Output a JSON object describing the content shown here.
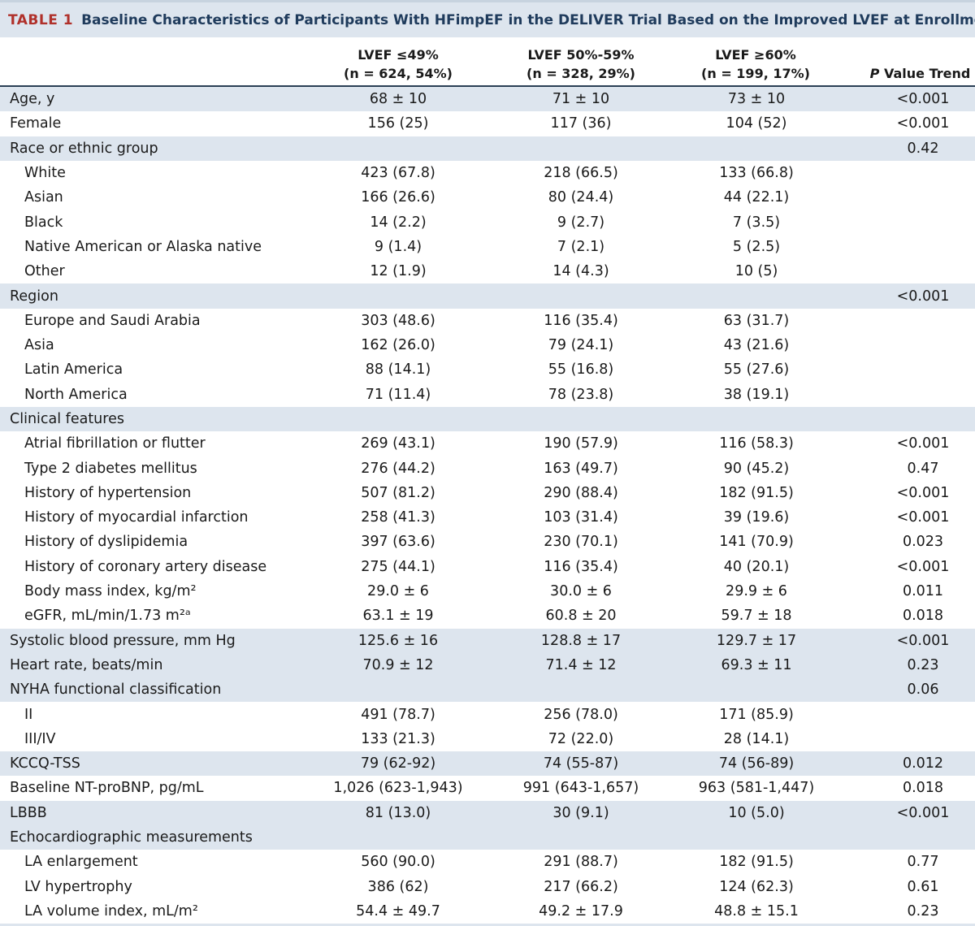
{
  "title": {
    "label": "TABLE 1",
    "text": "Baseline Characteristics of Participants With HFimpEF in the DELIVER Trial Based on the Improved LVEF at Enrollment"
  },
  "columns": [
    {
      "line1": "LVEF ≤49%",
      "line2": "(n = 624, 54%)"
    },
    {
      "line1": "LVEF 50%-59%",
      "line2": "(n = 328, 29%)"
    },
    {
      "line1": "LVEF ≥60%",
      "line2": "(n = 199, 17%)"
    },
    {
      "p": "P",
      "rest": " Value Trend"
    }
  ],
  "rows": [
    {
      "label": "Age, y",
      "v1": "68 ± 10",
      "v2": "71 ± 10",
      "v3": "73 ± 10",
      "p": "<0.001"
    },
    {
      "label": "Female",
      "v1": "156 (25)",
      "v2": "117 (36)",
      "v3": "104 (52)",
      "p": "<0.001"
    },
    {
      "label": "Race or ethnic group",
      "v1": "",
      "v2": "",
      "v3": "",
      "p": "0.42"
    },
    {
      "label": "White",
      "v1": "423 (67.8)",
      "v2": "218 (66.5)",
      "v3": "133 (66.8)",
      "p": ""
    },
    {
      "label": "Asian",
      "v1": "166 (26.6)",
      "v2": "80 (24.4)",
      "v3": "44 (22.1)",
      "p": ""
    },
    {
      "label": "Black",
      "v1": "14 (2.2)",
      "v2": "9 (2.7)",
      "v3": "7 (3.5)",
      "p": ""
    },
    {
      "label": "Native American or Alaska native",
      "v1": "9 (1.4)",
      "v2": "7 (2.1)",
      "v3": "5 (2.5)",
      "p": ""
    },
    {
      "label": "Other",
      "v1": "12 (1.9)",
      "v2": "14 (4.3)",
      "v3": "10 (5)",
      "p": ""
    },
    {
      "label": "Region",
      "v1": "",
      "v2": "",
      "v3": "",
      "p": "<0.001"
    },
    {
      "label": "Europe and Saudi Arabia",
      "v1": "303 (48.6)",
      "v2": "116 (35.4)",
      "v3": "63 (31.7)",
      "p": ""
    },
    {
      "label": "Asia",
      "v1": "162 (26.0)",
      "v2": "79 (24.1)",
      "v3": "43 (21.6)",
      "p": ""
    },
    {
      "label": "Latin America",
      "v1": "88 (14.1)",
      "v2": "55 (16.8)",
      "v3": "55 (27.6)",
      "p": ""
    },
    {
      "label": "North America",
      "v1": "71 (11.4)",
      "v2": "78 (23.8)",
      "v3": "38 (19.1)",
      "p": ""
    },
    {
      "label": "Clinical features",
      "v1": "",
      "v2": "",
      "v3": "",
      "p": ""
    },
    {
      "label": "Atrial fibrillation or flutter",
      "v1": "269 (43.1)",
      "v2": "190 (57.9)",
      "v3": "116 (58.3)",
      "p": "<0.001"
    },
    {
      "label": "Type 2 diabetes mellitus",
      "v1": "276 (44.2)",
      "v2": "163 (49.7)",
      "v3": "90 (45.2)",
      "p": "0.47"
    },
    {
      "label": "History of hypertension",
      "v1": "507 (81.2)",
      "v2": "290 (88.4)",
      "v3": "182 (91.5)",
      "p": "<0.001"
    },
    {
      "label": "History of myocardial infarction",
      "v1": "258 (41.3)",
      "v2": "103 (31.4)",
      "v3": "39 (19.6)",
      "p": "<0.001"
    },
    {
      "label": "History of dyslipidemia",
      "v1": "397 (63.6)",
      "v2": "230 (70.1)",
      "v3": "141 (70.9)",
      "p": "0.023"
    },
    {
      "label": "History of coronary artery disease",
      "v1": "275 (44.1)",
      "v2": "116 (35.4)",
      "v3": "40 (20.1)",
      "p": "<0.001"
    },
    {
      "label": "Body mass index, kg/m²",
      "v1": "29.0 ± 6",
      "v2": "30.0 ± 6",
      "v3": "29.9 ± 6",
      "p": "0.011"
    },
    {
      "label": "eGFR, mL/min/1.73 m²ᵃ",
      "v1": "63.1 ± 19",
      "v2": "60.8 ± 20",
      "v3": "59.7 ± 18",
      "p": "0.018"
    },
    {
      "label": "Systolic blood pressure, mm Hg",
      "v1": "125.6 ± 16",
      "v2": "128.8 ± 17",
      "v3": "129.7 ± 17",
      "p": "<0.001"
    },
    {
      "label": "Heart rate, beats/min",
      "v1": "70.9 ± 12",
      "v2": "71.4 ± 12",
      "v3": "69.3 ± 11",
      "p": "0.23"
    },
    {
      "label": "NYHA functional classification",
      "v1": "",
      "v2": "",
      "v3": "",
      "p": "0.06"
    },
    {
      "label": "II",
      "v1": "491 (78.7)",
      "v2": "256 (78.0)",
      "v3": "171 (85.9)",
      "p": ""
    },
    {
      "label": "III/IV",
      "v1": "133 (21.3)",
      "v2": "72 (22.0)",
      "v3": "28 (14.1)",
      "p": ""
    },
    {
      "label": "KCCQ-TSS",
      "v1": "79 (62-92)",
      "v2": "74 (55-87)",
      "v3": "74 (56-89)",
      "p": "0.012"
    },
    {
      "label": "Baseline NT-proBNP, pg/mL",
      "v1": "1,026 (623-1,943)",
      "v2": "991 (643-1,657)",
      "v3": "963 (581-1,447)",
      "p": "0.018"
    },
    {
      "label": "LBBB",
      "v1": "81 (13.0)",
      "v2": "30 (9.1)",
      "v3": "10 (5.0)",
      "p": "<0.001"
    },
    {
      "label": "Echocardiographic measurements",
      "v1": "",
      "v2": "",
      "v3": "",
      "p": ""
    },
    {
      "label": "LA enlargement",
      "v1": "560 (90.0)",
      "v2": "291 (88.7)",
      "v3": "182 (91.5)",
      "p": "0.77"
    },
    {
      "label": "LV hypertrophy",
      "v1": "386 (62)",
      "v2": "217 (66.2)",
      "v3": "124 (62.3)",
      "p": "0.61"
    },
    {
      "label": "LA volume index, mL/m²",
      "v1": "54.4 ± 49.7",
      "v2": "49.2 ± 17.9",
      "v3": "48.8 ± 15.1",
      "p": "0.23"
    }
  ]
}
